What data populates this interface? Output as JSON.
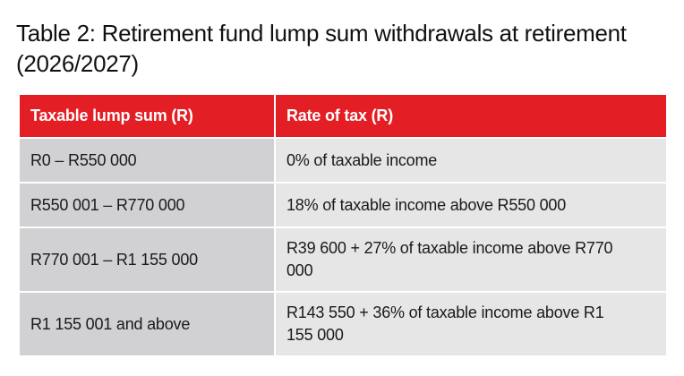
{
  "title": "Table 2: Retirement fund lump sum withdrawals at retirement (2026/2027)",
  "table": {
    "header": [
      "Taxable lump sum (R)",
      "Rate of tax (R)"
    ],
    "rows": [
      [
        "R0 – R550 000",
        "0% of taxable income"
      ],
      [
        "R550 001 – R770 000",
        "18% of taxable income above R550 000"
      ],
      [
        "R770 001 – R1 155 000",
        "R39 600 + 27% of taxable income above R770 000"
      ],
      [
        "R1 155 001 and above",
        "R143 550 + 36% of taxable income above R1 155 000"
      ]
    ]
  }
}
